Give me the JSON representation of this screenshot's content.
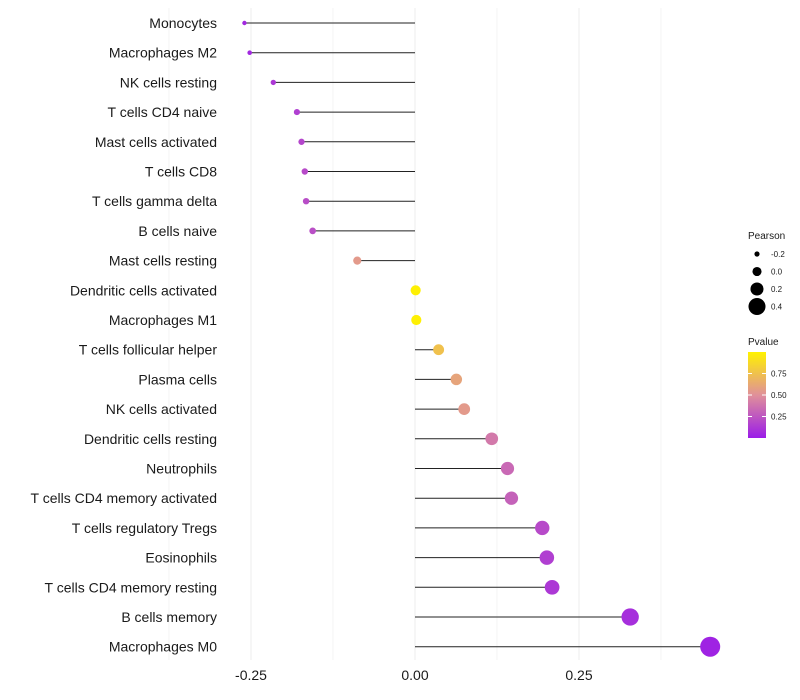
{
  "chart_data": {
    "type": "lollipop",
    "title": "",
    "xlabel": "",
    "ylabel": "",
    "xlim": [
      -0.29,
      0.48
    ],
    "x_ticks": [
      -0.25,
      0.0,
      0.25
    ],
    "x_tick_labels": [
      "-0.25",
      "0.00",
      "0.25"
    ],
    "grid": true,
    "legend_position": "right",
    "categories": [
      "Monocytes",
      "Macrophages M2",
      "NK cells resting",
      "T cells CD4 naive",
      "Mast cells activated",
      "T cells CD8",
      "T cells gamma delta",
      "B cells naive",
      "Mast cells resting",
      "Dendritic cells activated",
      "Macrophages M1",
      "T cells follicular helper",
      "Plasma cells",
      "NK cells activated",
      "Dendritic cells resting",
      "Neutrophils",
      "T cells CD4 memory activated",
      "T cells regulatory  Tregs ",
      "Eosinophils",
      "T cells CD4 memory resting",
      "B cells memory",
      "Macrophages M0"
    ],
    "pearson": [
      -0.26,
      -0.252,
      -0.216,
      -0.18,
      -0.173,
      -0.168,
      -0.166,
      -0.156,
      -0.088,
      0.001,
      0.002,
      0.036,
      0.063,
      0.075,
      0.117,
      0.141,
      0.147,
      0.194,
      0.201,
      0.209,
      0.328,
      0.45
    ],
    "pvalue": [
      0.05,
      0.05,
      0.12,
      0.15,
      0.18,
      0.2,
      0.21,
      0.22,
      0.55,
      0.99,
      0.99,
      0.75,
      0.6,
      0.55,
      0.4,
      0.33,
      0.3,
      0.2,
      0.15,
      0.12,
      0.08,
      0.03
    ],
    "size_legend": {
      "title": "Pearson",
      "values": [
        -0.2,
        0.0,
        0.2,
        0.4
      ],
      "labels": [
        "-0.2",
        "0.0",
        "0.2",
        "0.4"
      ]
    },
    "color_legend": {
      "title": "Pvalue",
      "ticks": [
        0.25,
        0.5,
        0.75
      ],
      "tick_labels": [
        "0.25",
        "0.50",
        "0.75"
      ],
      "range": [
        0.0,
        1.0
      ],
      "low_color": "#9b1ce8",
      "mid_color": "#e0909a",
      "high_color": "#fff200"
    }
  }
}
